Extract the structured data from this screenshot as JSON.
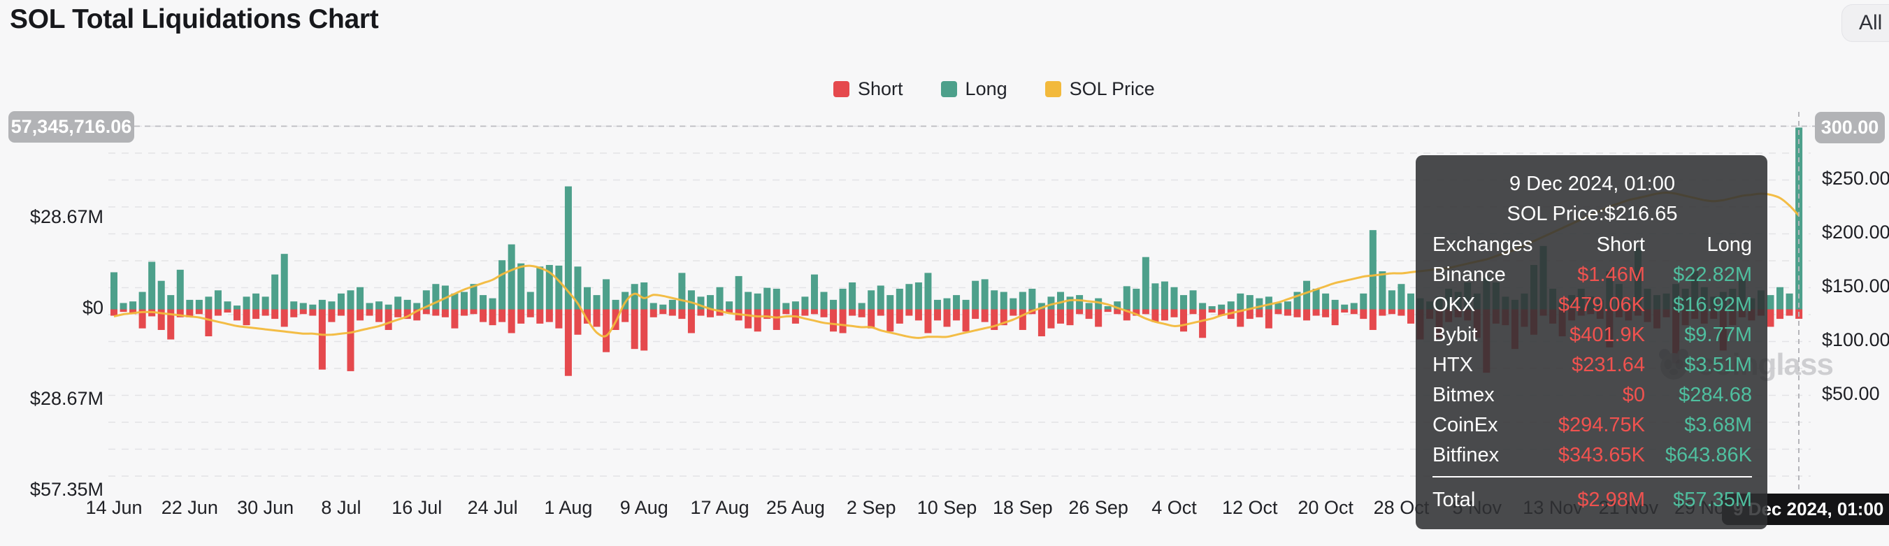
{
  "header": {
    "title": "SOL Total Liquidations Chart",
    "range_button": "All"
  },
  "legend": [
    {
      "label": "Short",
      "color": "#e5494d"
    },
    {
      "label": "Long",
      "color": "#4da08b"
    },
    {
      "label": "SOL Price",
      "color": "#f2b93c"
    }
  ],
  "y_axis_left": {
    "badge": "57,345,716.06",
    "labels": [
      "$28.67M",
      "$0",
      "$28.67M",
      "$57.35M"
    ]
  },
  "y_axis_right": {
    "badge": "300.00",
    "labels": [
      "$250.00",
      "$200.00",
      "$150.00",
      "$100.00",
      "$50.00"
    ]
  },
  "x_axis": {
    "badge": "9 Dec 2024, 01:00",
    "ticks": [
      {
        "label": "14 Jun",
        "day": 0
      },
      {
        "label": "22 Jun",
        "day": 8
      },
      {
        "label": "30 Jun",
        "day": 16
      },
      {
        "label": "8 Jul",
        "day": 24
      },
      {
        "label": "16 Jul",
        "day": 32
      },
      {
        "label": "24 Jul",
        "day": 40
      },
      {
        "label": "1 Aug",
        "day": 48
      },
      {
        "label": "9 Aug",
        "day": 56
      },
      {
        "label": "17 Aug",
        "day": 64
      },
      {
        "label": "25 Aug",
        "day": 72
      },
      {
        "label": "2 Sep",
        "day": 80
      },
      {
        "label": "10 Sep",
        "day": 88
      },
      {
        "label": "18 Sep",
        "day": 96
      },
      {
        "label": "26 Sep",
        "day": 104
      },
      {
        "label": "4 Oct",
        "day": 112
      },
      {
        "label": "12 Oct",
        "day": 120
      },
      {
        "label": "20 Oct",
        "day": 128
      },
      {
        "label": "28 Oct",
        "day": 136
      },
      {
        "label": "5 Nov",
        "day": 144
      },
      {
        "label": "13 Nov",
        "day": 152
      },
      {
        "label": "21 Nov",
        "day": 160
      },
      {
        "label": "29 Nov",
        "day": 168
      }
    ]
  },
  "tooltip": {
    "title": "9 Dec 2024, 01:00",
    "subtitle": "SOL Price:$216.65",
    "columns": [
      "Exchanges",
      "Short",
      "Long"
    ],
    "rows": [
      [
        "Binance",
        "$1.46M",
        "$22.82M"
      ],
      [
        "OKX",
        "$479.06K",
        "$16.92M"
      ],
      [
        "Bybit",
        "$401.9K",
        "$9.77M"
      ],
      [
        "HTX",
        "$231.64",
        "$3.51M"
      ],
      [
        "Bitmex",
        "$0",
        "$284.68"
      ],
      [
        "CoinEx",
        "$294.75K",
        "$3.68M"
      ],
      [
        "Bitfinex",
        "$343.65K",
        "$643.86K"
      ]
    ],
    "total": [
      "Total",
      "$2.98M",
      "$57.35M"
    ]
  },
  "watermark": {
    "text": "coinglass"
  },
  "chart_data": {
    "type": "bar",
    "title": "SOL Total Liquidations Chart",
    "start_date": "14 Jun 2024",
    "end_date": "9 Dec 2024",
    "interval": "1 day",
    "legend_position": "top-center",
    "grid": "horizontal-dashed",
    "y_axis_left": {
      "unit": "USD liquidations",
      "zero_label": "$0",
      "tick_step_abs": "28.67M",
      "max_abs": "57.35M",
      "long_direction": "up",
      "short_direction": "down"
    },
    "y_axis_right": {
      "unit": "USD SOL price",
      "min": 0,
      "max": 300,
      "tick_step": 50
    },
    "highlighted_point": {
      "date": "9 Dec 2024, 01:00",
      "short": "$2.98M",
      "long": "$57.35M",
      "sol_price": "$216.65",
      "left_axis_crosshair": "57,345,716.06",
      "right_axis_crosshair": "300.00"
    },
    "series": [
      {
        "name": "Short",
        "type": "bar",
        "unit": "USD millions",
        "color": "#e5494d",
        "values": [
          2.0,
          0.8,
          1.5,
          6.0,
          2.2,
          6.5,
          9.5,
          2.5,
          2.5,
          1.5,
          8.5,
          2.0,
          1.0,
          3.5,
          5.0,
          3.0,
          2.0,
          3.0,
          5.5,
          2.5,
          1.5,
          2.0,
          19.0,
          4.0,
          2.0,
          19.5,
          3.5,
          2.0,
          4.0,
          6.5,
          2.5,
          3.0,
          3.5,
          1.5,
          2.0,
          2.5,
          6.0,
          2.0,
          1.5,
          4.0,
          5.0,
          4.0,
          7.5,
          4.5,
          2.5,
          4.5,
          4.0,
          6.0,
          21.0,
          8.0,
          4.5,
          5.5,
          13.5,
          6.5,
          4.0,
          12.5,
          13.0,
          2.5,
          1.5,
          2.0,
          3.0,
          7.5,
          2.0,
          2.5,
          2.0,
          1.0,
          3.5,
          6.0,
          7.0,
          3.0,
          6.5,
          1.5,
          4.5,
          2.0,
          1.5,
          2.5,
          7.0,
          7.5,
          2.0,
          2.5,
          6.0,
          2.0,
          7.0,
          4.5,
          2.0,
          3.5,
          7.5,
          3.5,
          5.5,
          3.5,
          7.0,
          3.0,
          4.0,
          6.5,
          5.0,
          2.0,
          6.5,
          1.5,
          8.5,
          6.0,
          4.5,
          5.0,
          1.5,
          3.0,
          5.5,
          0.8,
          1.5,
          3.5,
          2.0,
          1.5,
          4.0,
          3.5,
          2.5,
          7.0,
          1.5,
          9.0,
          1.0,
          2.0,
          3.0,
          5.5,
          3.0,
          2.5,
          6.0,
          1.5,
          2.0,
          2.5,
          3.5,
          2.0,
          2.5,
          5.0,
          1.0,
          1.5,
          3.0,
          6.5,
          2.0,
          1.5,
          2.0,
          4.5,
          9.5,
          3.0,
          9.0,
          4.0,
          2.5,
          3.5,
          9.0,
          20.0,
          4.5,
          5.0,
          12.5,
          5.5,
          8.0,
          2.0,
          4.5,
          8.5,
          3.5,
          2.0,
          1.5,
          3.0,
          12.0,
          2.5,
          3.5,
          2.0,
          4.0,
          6.0,
          2.5,
          17.0,
          5.0,
          3.0,
          4.5,
          3.0,
          13.0,
          5.0,
          2.5,
          3.5,
          2.0,
          5.5,
          3.0,
          2.0,
          2.98
        ]
      },
      {
        "name": "Long",
        "type": "bar",
        "unit": "USD millions",
        "color": "#4da08b",
        "values": [
          11.7,
          2.0,
          2.5,
          5.5,
          15.0,
          9.0,
          4.5,
          12.5,
          3.0,
          3.0,
          4.0,
          6.0,
          2.5,
          1.2,
          4.0,
          5.0,
          4.0,
          11.0,
          17.5,
          2.5,
          2.0,
          1.5,
          3.0,
          2.5,
          5.0,
          6.0,
          7.0,
          2.0,
          2.5,
          1.5,
          4.0,
          3.0,
          2.0,
          6.0,
          8.0,
          7.5,
          5.0,
          5.5,
          8.0,
          4.5,
          3.5,
          15.5,
          20.5,
          14.5,
          5.5,
          13.5,
          14.0,
          13.8,
          38.8,
          13.5,
          7.0,
          4.5,
          9.5,
          3.0,
          5.5,
          8.0,
          8.5,
          2.0,
          1.5,
          3.0,
          11.5,
          6.0,
          4.0,
          4.5,
          7.0,
          2.5,
          10.5,
          5.5,
          5.0,
          6.8,
          6.5,
          2.0,
          2.5,
          4.0,
          11.0,
          5.5,
          3.0,
          6.5,
          8.5,
          2.0,
          6.0,
          7.5,
          4.5,
          6.5,
          8.0,
          8.5,
          11.5,
          3.0,
          3.5,
          4.5,
          3.0,
          9.0,
          9.5,
          6.0,
          5.5,
          3.5,
          5.5,
          6.5,
          2.0,
          4.0,
          5.5,
          4.0,
          4.5,
          2.0,
          3.5,
          1.0,
          2.5,
          7.3,
          6.5,
          16.5,
          8.2,
          8.8,
          7.0,
          4.5,
          6.0,
          2.0,
          1.0,
          1.5,
          2.5,
          5.0,
          4.5,
          3.5,
          4.0,
          2.0,
          2.5,
          5.5,
          9.0,
          6.5,
          5.0,
          3.0,
          1.5,
          2.0,
          5.0,
          25.0,
          12.0,
          6.0,
          8.0,
          5.0,
          3.5,
          2.5,
          4.0,
          6.5,
          5.5,
          8.5,
          5.0,
          10.0,
          8.5,
          4.0,
          3.0,
          5.0,
          14.0,
          20.0,
          6.5,
          2.5,
          4.5,
          6.5,
          4.0,
          3.0,
          12.0,
          8.0,
          2.5,
          19.5,
          6.5,
          4.5,
          5.0,
          8.0,
          6.5,
          12.0,
          7.0,
          4.0,
          5.5,
          6.5,
          9.5,
          3.5,
          6.0,
          4.5,
          7.0,
          5.0,
          57.35
        ]
      },
      {
        "name": "SOL Price",
        "type": "line",
        "axis": "right",
        "unit": "USD",
        "color": "#f2b93c",
        "values": [
          123,
          125,
          126,
          127,
          127,
          126,
          125,
          124,
          123,
          122,
          120,
          118,
          116,
          114,
          113,
          112,
          111,
          110,
          109,
          108,
          107,
          107,
          106,
          106,
          107,
          108,
          110,
          112,
          114,
          117,
          120,
          123,
          128,
          132,
          136,
          140,
          144,
          148,
          151,
          154,
          157,
          162,
          166,
          169,
          170,
          168,
          164,
          156,
          146,
          135,
          120,
          108,
          105,
          118,
          136,
          144,
          140,
          143,
          142,
          140,
          138,
          136,
          133,
          130,
          128,
          126,
          125,
          124,
          123,
          123,
          122,
          123,
          123,
          121,
          119,
          117,
          116,
          115,
          114,
          113,
          113,
          110,
          108,
          106,
          104,
          103,
          104,
          104,
          104,
          106,
          108,
          110,
          112,
          114,
          117,
          120,
          124,
          128,
          131,
          134,
          136,
          138,
          138,
          137,
          136,
          134,
          131,
          128,
          125,
          121,
          118,
          116,
          114,
          115,
          117,
          119,
          121,
          124,
          126,
          128,
          130,
          132,
          134,
          136,
          139,
          142,
          145,
          148,
          151,
          154,
          156,
          158,
          160,
          161,
          162,
          163,
          163,
          164,
          165,
          166,
          167,
          168,
          170,
          172,
          174,
          176,
          179,
          182,
          185,
          189,
          193,
          197,
          201,
          205,
          209,
          213,
          217,
          221,
          225,
          228,
          231,
          233,
          235,
          237,
          238,
          237,
          235,
          233,
          231,
          230,
          231,
          233,
          235,
          236,
          237,
          236,
          233,
          226,
          216.65
        ]
      }
    ]
  }
}
